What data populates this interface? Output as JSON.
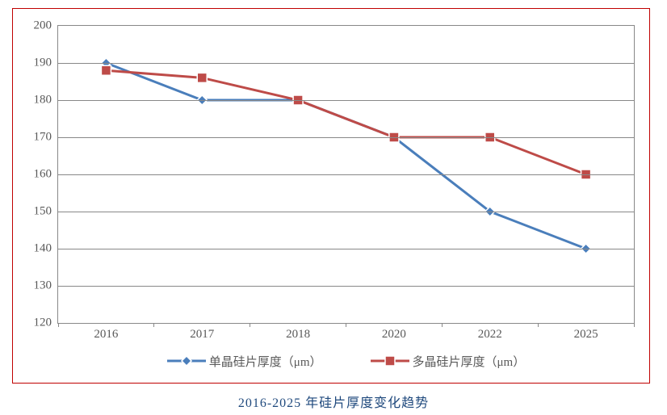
{
  "caption": "2016-2025 年硅片厚度变化趋势",
  "chart": {
    "type": "line",
    "background_color": "#ffffff",
    "border_color": "#c00000",
    "plot_border_color": "#888888",
    "grid_color": "#888888",
    "tick_label_color": "#595959",
    "tick_label_fontsize": 15,
    "ylim": [
      120,
      200
    ],
    "ytick_step": 10,
    "yticks": [
      120,
      130,
      140,
      150,
      160,
      170,
      180,
      190,
      200
    ],
    "categories": [
      "2016",
      "2017",
      "2018",
      "2020",
      "2022",
      "2025"
    ],
    "series": [
      {
        "name": "单晶硅片厚度（μm）",
        "color": "#4a7ebb",
        "marker": "diamond",
        "marker_size": 12,
        "line_width": 3,
        "values": [
          190,
          180,
          180,
          170,
          150,
          140
        ]
      },
      {
        "name": "多晶硅片厚度（μm）",
        "color": "#be4b48",
        "marker": "square",
        "marker_size": 12,
        "line_width": 3,
        "values": [
          188,
          186,
          180,
          170,
          170,
          160
        ]
      }
    ]
  }
}
